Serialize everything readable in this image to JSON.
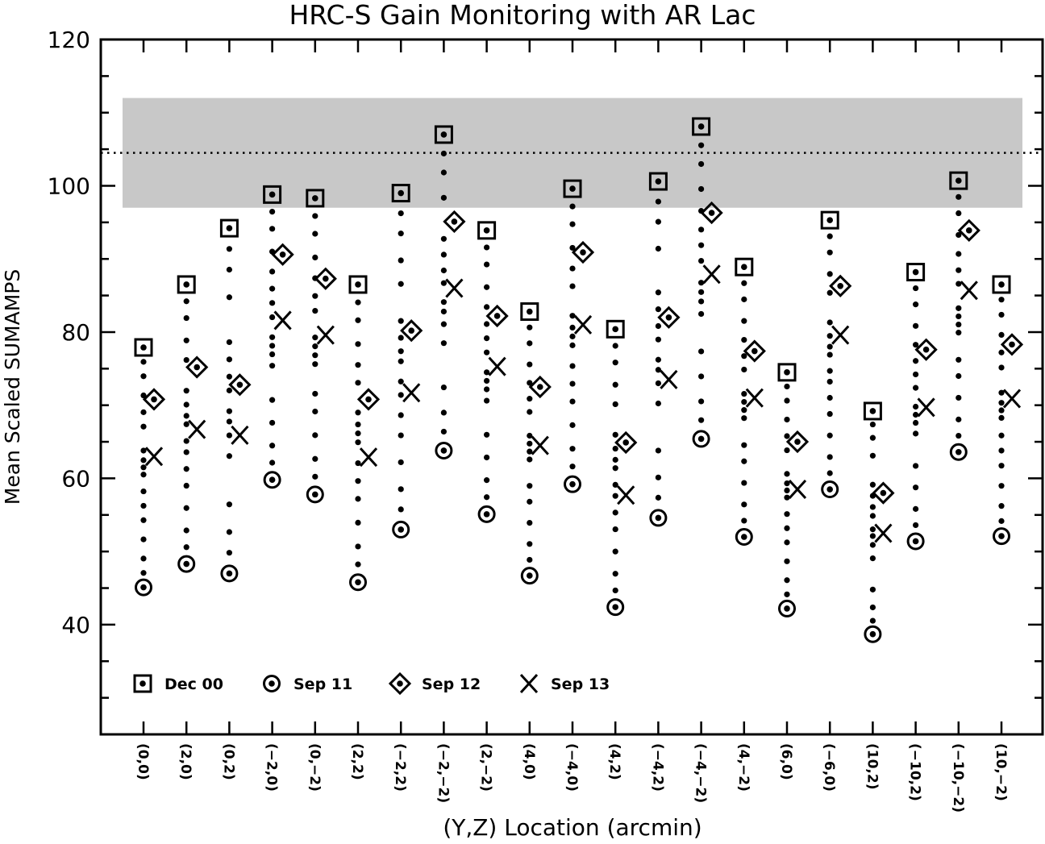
{
  "chart_data": {
    "type": "scatter",
    "title": "HRC-S Gain Monitoring with AR Lac",
    "xlabel": "(Y,Z) Location (arcmin)",
    "ylabel": "Mean Scaled SUMAMPS",
    "ylim": [
      25,
      120
    ],
    "yticks": [
      40,
      60,
      80,
      100,
      120
    ],
    "y_minor_step": 5,
    "grid": false,
    "legend_position": "lower-left inside plot",
    "categories": [
      "(0,0)",
      "(2,0)",
      "(0,2)",
      "(-2,0)",
      "(0,-2)",
      "(2,2)",
      "(-2,2)",
      "(-2,-2)",
      "(2,-2)",
      "(4,0)",
      "(-4,0)",
      "(4,2)",
      "(-4,2)",
      "(-4,-2)",
      "(4,-2)",
      "(6,0)",
      "(-6,0)",
      "(10,2)",
      "(-10,2)",
      "(-10,-2)",
      "(10,-2)"
    ],
    "series": [
      {
        "name": "Dec 00",
        "marker": "square-with-dot",
        "values": [
          77.9,
          86.5,
          94.2,
          98.8,
          98.3,
          86.5,
          99.0,
          107.0,
          93.9,
          82.8,
          99.6,
          80.4,
          100.6,
          108.1,
          88.9,
          74.5,
          95.3,
          69.2,
          88.2,
          100.7,
          86.5
        ]
      },
      {
        "name": "Sep 11",
        "marker": "circle-with-dot",
        "values": [
          45.1,
          48.3,
          47.0,
          59.8,
          57.8,
          45.8,
          53.0,
          63.8,
          55.1,
          46.7,
          59.2,
          42.4,
          54.6,
          65.4,
          52.0,
          42.2,
          58.5,
          38.7,
          51.4,
          63.6,
          52.1
        ]
      },
      {
        "name": "Sep 12",
        "marker": "diamond-with-dot",
        "values": [
          70.8,
          75.2,
          72.8,
          90.6,
          87.3,
          70.8,
          80.2,
          95.1,
          82.2,
          72.5,
          90.9,
          64.9,
          82.0,
          96.3,
          77.4,
          65.0,
          86.3,
          58.0,
          77.6,
          93.9,
          78.3
        ]
      },
      {
        "name": "Sep 13",
        "marker": "cross",
        "values": [
          63.0,
          66.7,
          65.9,
          81.6,
          79.6,
          62.9,
          71.7,
          86.0,
          75.3,
          64.5,
          81.0,
          57.7,
          73.5,
          87.9,
          71.0,
          58.5,
          79.6,
          52.5,
          69.7,
          85.7,
          70.9
        ]
      }
    ],
    "intermediate_points_note": "small filled dots connecting Dec 00 to Sep 11 per location (monthly measurements)",
    "reference_band": {
      "y_min": 97,
      "y_max": 112,
      "color": "#c8c8c8"
    },
    "reference_line": {
      "y": 104.5,
      "style": "dotted"
    }
  },
  "legend": [
    {
      "label": "Dec 00",
      "marker": "square-with-dot"
    },
    {
      "label": "Sep 11",
      "marker": "circle-with-dot"
    },
    {
      "label": "Sep 12",
      "marker": "diamond-with-dot"
    },
    {
      "label": "Sep 13",
      "marker": "cross"
    }
  ],
  "colors": {
    "foreground": "#000000",
    "band": "#c8c8c8",
    "background": "#ffffff"
  }
}
